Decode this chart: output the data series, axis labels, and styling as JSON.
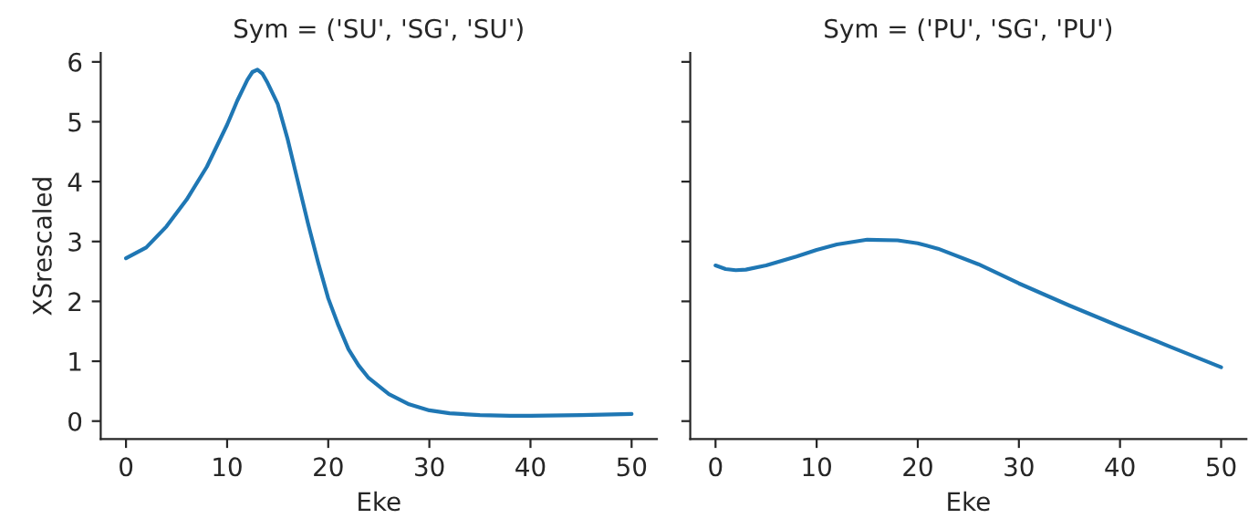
{
  "chart_data": [
    {
      "type": "line",
      "title": "Sym = ('SU', 'SG', 'SU')",
      "xlabel": "Eke",
      "ylabel": "XSrescaled",
      "xlim": [
        -2.5,
        52.5
      ],
      "xticks": [
        0,
        10,
        20,
        30,
        40,
        50
      ],
      "ylim": [
        -0.3,
        6.15
      ],
      "yticks": [
        0,
        1,
        2,
        3,
        4,
        5,
        6
      ],
      "series": [
        {
          "color": "#1f77b4",
          "x": [
            0,
            2,
            4,
            6,
            8,
            10,
            11,
            12,
            12.5,
            13,
            13.5,
            14,
            15,
            16,
            17,
            18,
            19,
            20,
            21,
            22,
            23,
            24,
            26,
            28,
            30,
            32,
            35,
            38,
            40,
            45,
            50
          ],
          "values": [
            2.72,
            2.9,
            3.25,
            3.7,
            4.25,
            4.95,
            5.35,
            5.7,
            5.83,
            5.87,
            5.8,
            5.65,
            5.3,
            4.7,
            4.0,
            3.3,
            2.65,
            2.05,
            1.6,
            1.2,
            0.93,
            0.72,
            0.45,
            0.28,
            0.18,
            0.13,
            0.1,
            0.09,
            0.09,
            0.1,
            0.12
          ]
        }
      ]
    },
    {
      "type": "line",
      "title": "Sym = ('PU', 'SG', 'PU')",
      "xlabel": "Eke",
      "xlim": [
        -2.5,
        52.5
      ],
      "xticks": [
        0,
        10,
        20,
        30,
        40,
        50
      ],
      "ylim": [
        -0.3,
        6.15
      ],
      "yticks": [
        0,
        1,
        2,
        3,
        4,
        5,
        6
      ],
      "tick_labels": "x",
      "series": [
        {
          "color": "#1f77b4",
          "x": [
            0,
            1,
            2,
            3,
            5,
            8,
            10,
            12,
            15,
            18,
            20,
            22,
            26,
            30,
            35,
            40,
            45,
            50
          ],
          "values": [
            2.6,
            2.54,
            2.52,
            2.53,
            2.6,
            2.75,
            2.86,
            2.95,
            3.03,
            3.02,
            2.97,
            2.88,
            2.62,
            2.3,
            1.93,
            1.58,
            1.24,
            0.9
          ]
        }
      ]
    }
  ]
}
